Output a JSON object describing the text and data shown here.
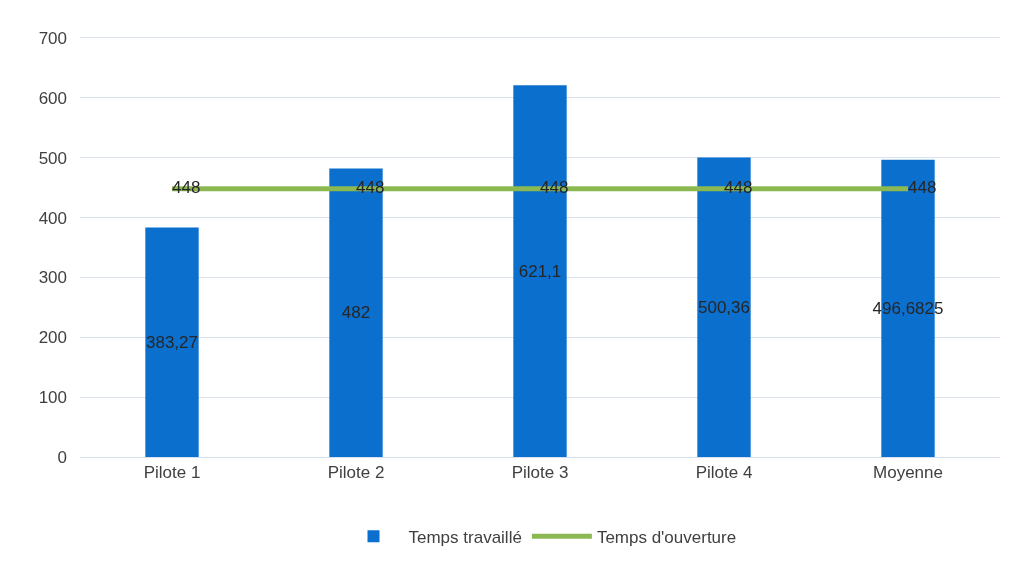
{
  "chart_data": {
    "type": "bar",
    "categories": [
      "Pilote 1",
      "Pilote 2",
      "Pilote 3",
      "Pilote 4",
      "Moyenne"
    ],
    "series": [
      {
        "name": "Temps travaillé",
        "color": "#0b6fce",
        "values": [
          383.27,
          482,
          621.1,
          500.36,
          496.6825
        ],
        "value_labels": [
          "383,27",
          "482",
          "621,1",
          "500,36",
          "496,6825"
        ]
      },
      {
        "name": "Temps d'ouverture",
        "type": "line",
        "color": "#8cb852",
        "values": [
          448,
          448,
          448,
          448,
          448
        ],
        "value_labels": [
          "448",
          "448",
          "448",
          "448",
          "448"
        ]
      }
    ],
    "ylim": [
      0,
      700
    ],
    "yticks": [
      0,
      100,
      200,
      300,
      400,
      500,
      600,
      700
    ],
    "grid": "y",
    "legend": "bottom",
    "marker": "none",
    "line_style": "solid"
  }
}
